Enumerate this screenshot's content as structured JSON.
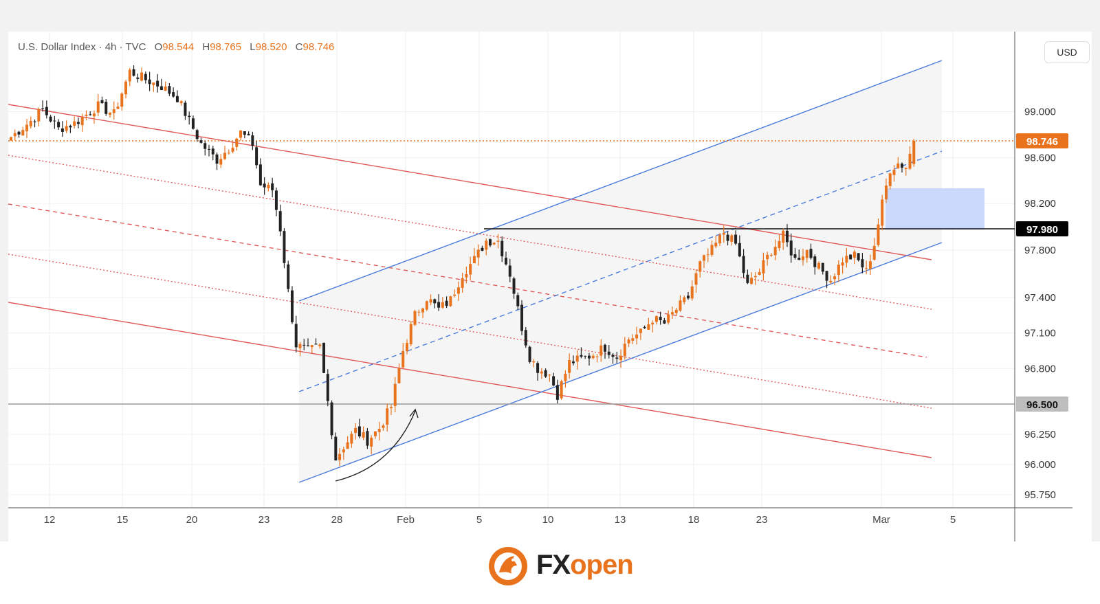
{
  "legend": {
    "symbol": "U.S. Dollar Index · 4h · TVC",
    "open_label": "O",
    "open": "98.544",
    "high_label": "H",
    "high": "98.765",
    "low_label": "L",
    "low": "98.520",
    "close_label": "C",
    "close": "98.746"
  },
  "currency": "USD",
  "brand": {
    "part1": "FX",
    "part2": "open"
  },
  "colors": {
    "up": "#e8731c",
    "down": "#222222",
    "channel_blue": "#4a7bdc",
    "channel_red": "#e05a5a"
  },
  "chart_data": {
    "type": "candlestick",
    "title": "U.S. Dollar Index · 4h · TVC",
    "ohlc": {
      "open": 98.544,
      "high": 98.765,
      "low": 98.52,
      "close": 98.746
    },
    "y_ticks": [
      "99.000",
      "98.600",
      "98.200",
      "97.800",
      "97.400",
      "97.100",
      "96.800",
      "96.250",
      "96.000",
      "95.750"
    ],
    "x_ticks": [
      "12",
      "15",
      "20",
      "23",
      "28",
      "Feb",
      "5",
      "10",
      "13",
      "18",
      "23",
      "Mar",
      "5"
    ],
    "price_labels": [
      {
        "value": 98.746,
        "text": "98.746",
        "style": "current"
      },
      {
        "value": 97.98,
        "text": "97.980",
        "style": "level"
      },
      {
        "value": 96.5,
        "text": "96.500",
        "style": "level"
      }
    ],
    "horizontal_levels": [
      97.98,
      96.5
    ],
    "close_path": [
      {
        "x": 0,
        "close": 98.78
      },
      {
        "x": 5,
        "close": 98.92
      },
      {
        "x": 8,
        "close": 99.02
      },
      {
        "x": 12,
        "close": 98.85
      },
      {
        "x": 16,
        "close": 98.9
      },
      {
        "x": 22,
        "close": 99.05
      },
      {
        "x": 26,
        "close": 98.98
      },
      {
        "x": 30,
        "close": 99.35
      },
      {
        "x": 34,
        "close": 99.28
      },
      {
        "x": 38,
        "close": 99.22
      },
      {
        "x": 42,
        "close": 99.12
      },
      {
        "x": 45,
        "close": 98.92
      },
      {
        "x": 48,
        "close": 98.72
      },
      {
        "x": 52,
        "close": 98.58
      },
      {
        "x": 55,
        "close": 98.68
      },
      {
        "x": 58,
        "close": 98.82
      },
      {
        "x": 61,
        "close": 98.72
      },
      {
        "x": 63,
        "close": 98.36
      },
      {
        "x": 66,
        "close": 98.32
      },
      {
        "x": 68,
        "close": 97.98
      },
      {
        "x": 70,
        "close": 97.45
      },
      {
        "x": 72,
        "close": 97.0
      },
      {
        "x": 75,
        "close": 96.95
      },
      {
        "x": 78,
        "close": 96.98
      },
      {
        "x": 80,
        "close": 96.52
      },
      {
        "x": 82,
        "close": 96.05
      },
      {
        "x": 84,
        "close": 96.15
      },
      {
        "x": 87,
        "close": 96.28
      },
      {
        "x": 90,
        "close": 96.2
      },
      {
        "x": 93,
        "close": 96.3
      },
      {
        "x": 96,
        "close": 96.48
      },
      {
        "x": 99,
        "close": 96.95
      },
      {
        "x": 102,
        "close": 97.25
      },
      {
        "x": 105,
        "close": 97.4
      },
      {
        "x": 108,
        "close": 97.3
      },
      {
        "x": 111,
        "close": 97.38
      },
      {
        "x": 114,
        "close": 97.6
      },
      {
        "x": 117,
        "close": 97.72
      },
      {
        "x": 120,
        "close": 97.88
      },
      {
        "x": 123,
        "close": 97.88
      },
      {
        "x": 126,
        "close": 97.6
      },
      {
        "x": 129,
        "close": 97.15
      },
      {
        "x": 131,
        "close": 96.9
      },
      {
        "x": 133,
        "close": 96.8
      },
      {
        "x": 136,
        "close": 96.75
      },
      {
        "x": 138,
        "close": 96.58
      },
      {
        "x": 141,
        "close": 96.85
      },
      {
        "x": 144,
        "close": 96.88
      },
      {
        "x": 147,
        "close": 96.92
      },
      {
        "x": 150,
        "close": 96.98
      },
      {
        "x": 153,
        "close": 96.9
      },
      {
        "x": 156,
        "close": 97.05
      },
      {
        "x": 159,
        "close": 97.1
      },
      {
        "x": 162,
        "close": 97.22
      },
      {
        "x": 165,
        "close": 97.18
      },
      {
        "x": 168,
        "close": 97.3
      },
      {
        "x": 171,
        "close": 97.4
      },
      {
        "x": 174,
        "close": 97.68
      },
      {
        "x": 177,
        "close": 97.8
      },
      {
        "x": 180,
        "close": 97.95
      },
      {
        "x": 183,
        "close": 97.85
      },
      {
        "x": 186,
        "close": 97.5
      },
      {
        "x": 189,
        "close": 97.62
      },
      {
        "x": 192,
        "close": 97.8
      },
      {
        "x": 195,
        "close": 97.92
      },
      {
        "x": 198,
        "close": 97.72
      },
      {
        "x": 201,
        "close": 97.8
      },
      {
        "x": 204,
        "close": 97.65
      },
      {
        "x": 207,
        "close": 97.55
      },
      {
        "x": 210,
        "close": 97.72
      },
      {
        "x": 213,
        "close": 97.75
      },
      {
        "x": 216,
        "close": 97.62
      },
      {
        "x": 218,
        "close": 97.85
      },
      {
        "x": 220,
        "close": 98.2
      },
      {
        "x": 222,
        "close": 98.5
      },
      {
        "x": 224,
        "close": 98.55
      },
      {
        "x": 226,
        "close": 98.52
      },
      {
        "x": 228,
        "close": 98.746
      }
    ]
  }
}
